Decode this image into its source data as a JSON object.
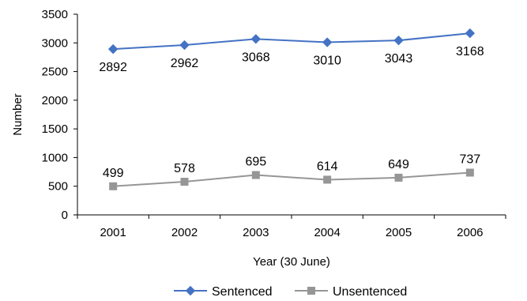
{
  "chart_data": {
    "type": "line",
    "categories": [
      "2001",
      "2002",
      "2003",
      "2004",
      "2005",
      "2006"
    ],
    "xlabel": "Year (30 June)",
    "ylabel": "Number",
    "ylim": [
      0,
      3500
    ],
    "yticks": [
      0,
      500,
      1000,
      1500,
      2000,
      2500,
      3000,
      3500
    ],
    "grid": false,
    "legend_position": "bottom",
    "series": [
      {
        "name": "Sentenced",
        "values": [
          2892,
          2962,
          3068,
          3010,
          3043,
          3168
        ],
        "color": "#4472C4",
        "marker": "diamond",
        "label_position": "below"
      },
      {
        "name": "Unsentenced",
        "values": [
          499,
          578,
          695,
          614,
          649,
          737
        ],
        "color": "#969696",
        "marker": "square",
        "label_position": "above"
      }
    ]
  }
}
